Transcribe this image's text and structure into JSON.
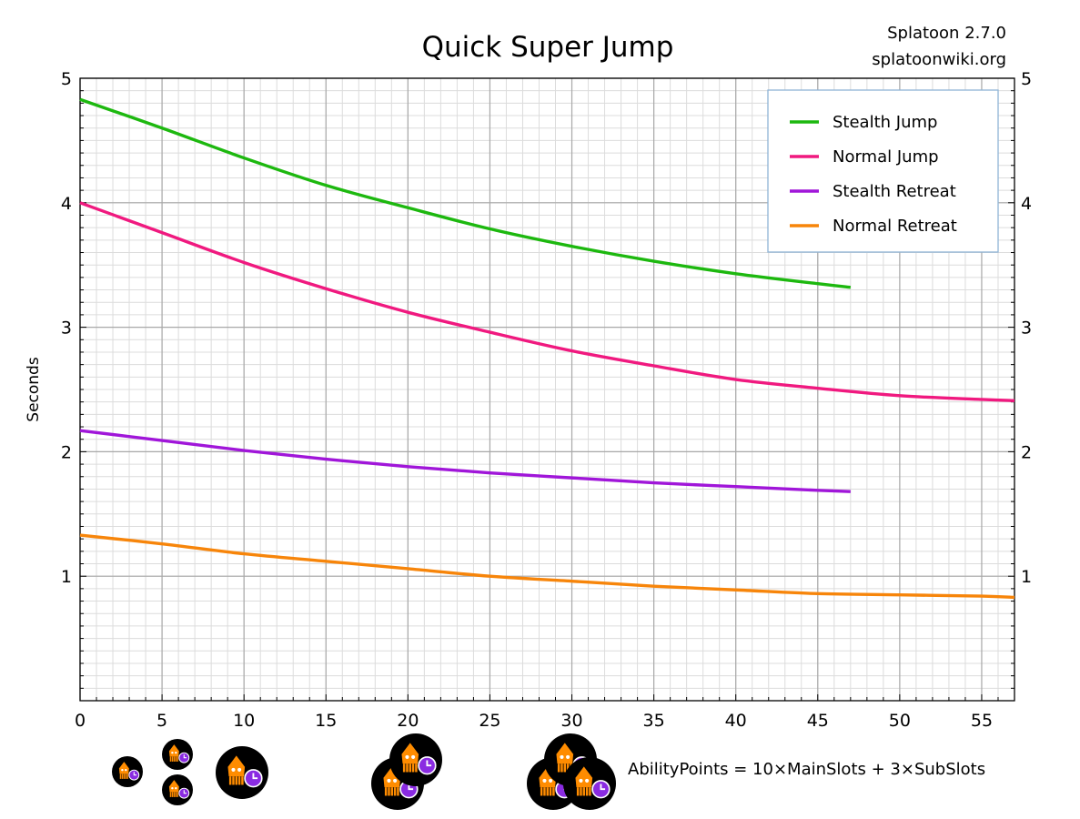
{
  "header": {
    "version": "Splatoon 2.7.0",
    "site": "splatoonwiki.org"
  },
  "formula": "AbilityPoints = 10×MainSlots + 3×SubSlots",
  "icons": {
    "badge": "squid-with-clock-icon",
    "badge_bg": "#000000",
    "squid_color": "#ff8c00",
    "clock_color": "#8a2be2"
  },
  "chart_data": {
    "type": "line",
    "title": "Quick Super Jump",
    "xlabel": "",
    "ylabel": "Seconds",
    "xlim": [
      0,
      57
    ],
    "ylim": [
      0,
      5
    ],
    "x_ticks": [
      0,
      5,
      10,
      15,
      20,
      25,
      30,
      35,
      40,
      45,
      50,
      55
    ],
    "y_ticks": [
      1,
      2,
      3,
      4,
      5
    ],
    "grid": true,
    "minor_grid_x": 1,
    "minor_grid_y": 0.1,
    "legend_position": "top-right",
    "series": [
      {
        "name": "Stealth Jump",
        "color": "#1db80f",
        "x": [
          0,
          5,
          10,
          15,
          20,
          25,
          30,
          35,
          40,
          45,
          47
        ],
        "y": [
          4.83,
          4.6,
          4.36,
          4.14,
          3.96,
          3.79,
          3.65,
          3.53,
          3.43,
          3.35,
          3.32
        ]
      },
      {
        "name": "Normal Jump",
        "color": "#f0197f",
        "x": [
          0,
          5,
          10,
          15,
          20,
          25,
          30,
          35,
          40,
          45,
          50,
          55,
          57
        ],
        "y": [
          4.0,
          3.76,
          3.52,
          3.31,
          3.12,
          2.96,
          2.81,
          2.69,
          2.58,
          2.51,
          2.45,
          2.42,
          2.41
        ]
      },
      {
        "name": "Stealth Retreat",
        "color": "#a016d9",
        "x": [
          0,
          5,
          10,
          15,
          20,
          25,
          30,
          35,
          40,
          45,
          47
        ],
        "y": [
          2.17,
          2.09,
          2.01,
          1.94,
          1.88,
          1.83,
          1.79,
          1.75,
          1.72,
          1.69,
          1.68
        ]
      },
      {
        "name": "Normal Retreat",
        "color": "#f7850a",
        "x": [
          0,
          5,
          10,
          15,
          20,
          25,
          30,
          35,
          40,
          45,
          50,
          55,
          57
        ],
        "y": [
          1.33,
          1.26,
          1.18,
          1.12,
          1.06,
          1.0,
          0.96,
          0.92,
          0.89,
          0.86,
          0.85,
          0.84,
          0.83
        ]
      }
    ]
  }
}
